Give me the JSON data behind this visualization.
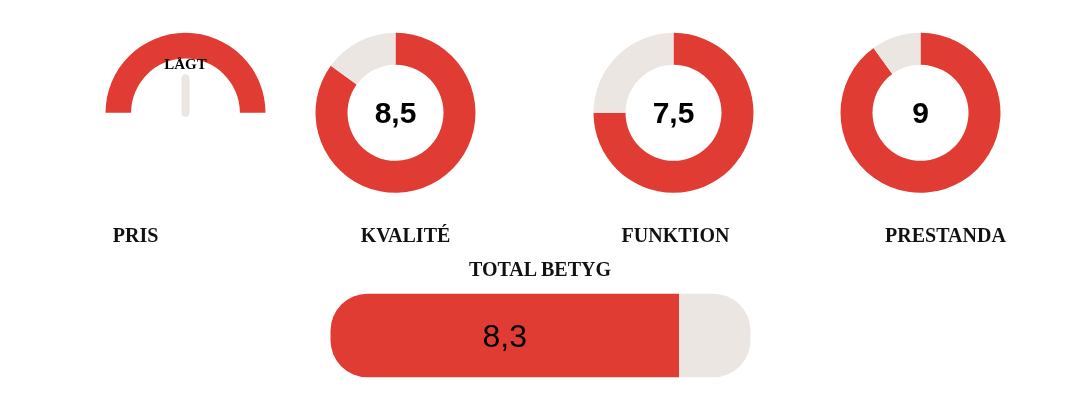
{
  "chart_data": [
    {
      "type": "pie",
      "title": "PRIS",
      "categories": [
        "LÅGT"
      ],
      "values": [
        100
      ],
      "colors": [
        "#e03c34"
      ],
      "needle": "LÅGT"
    },
    {
      "type": "donut",
      "title": "KVALITÉ",
      "categories": [
        null,
        null
      ],
      "values": [
        8.5,
        1.5
      ],
      "colors": [
        "#e03c34",
        "#ebe6e2"
      ],
      "value_labels": [
        "8,5",
        null
      ]
    },
    {
      "type": "donut",
      "title": "FUNKTION",
      "categories": [
        null,
        null
      ],
      "values": [
        7.5,
        2.5
      ],
      "colors": [
        "#e03c34",
        "#ebe6e2"
      ],
      "value_labels": [
        "7,5",
        null
      ]
    },
    {
      "type": "donut",
      "title": "PRESTANDA",
      "categories": [
        null,
        null
      ],
      "values": [
        9,
        1
      ],
      "colors": [
        "#e03c34",
        "#ebe6e2"
      ],
      "value_labels": [
        "9",
        null
      ]
    },
    {
      "type": "bar",
      "title": "TOTAL BETYG",
      "orientation": "horizontal",
      "stacked": true,
      "categories": [
        null
      ],
      "tick_labels": false,
      "series": [
        {
          "color": "#e03c34",
          "values": [
            8.3
          ],
          "value_labels": [
            "8,3"
          ]
        },
        {
          "color": "#ebe6e2",
          "values": [
            1.7
          ]
        }
      ]
    }
  ]
}
